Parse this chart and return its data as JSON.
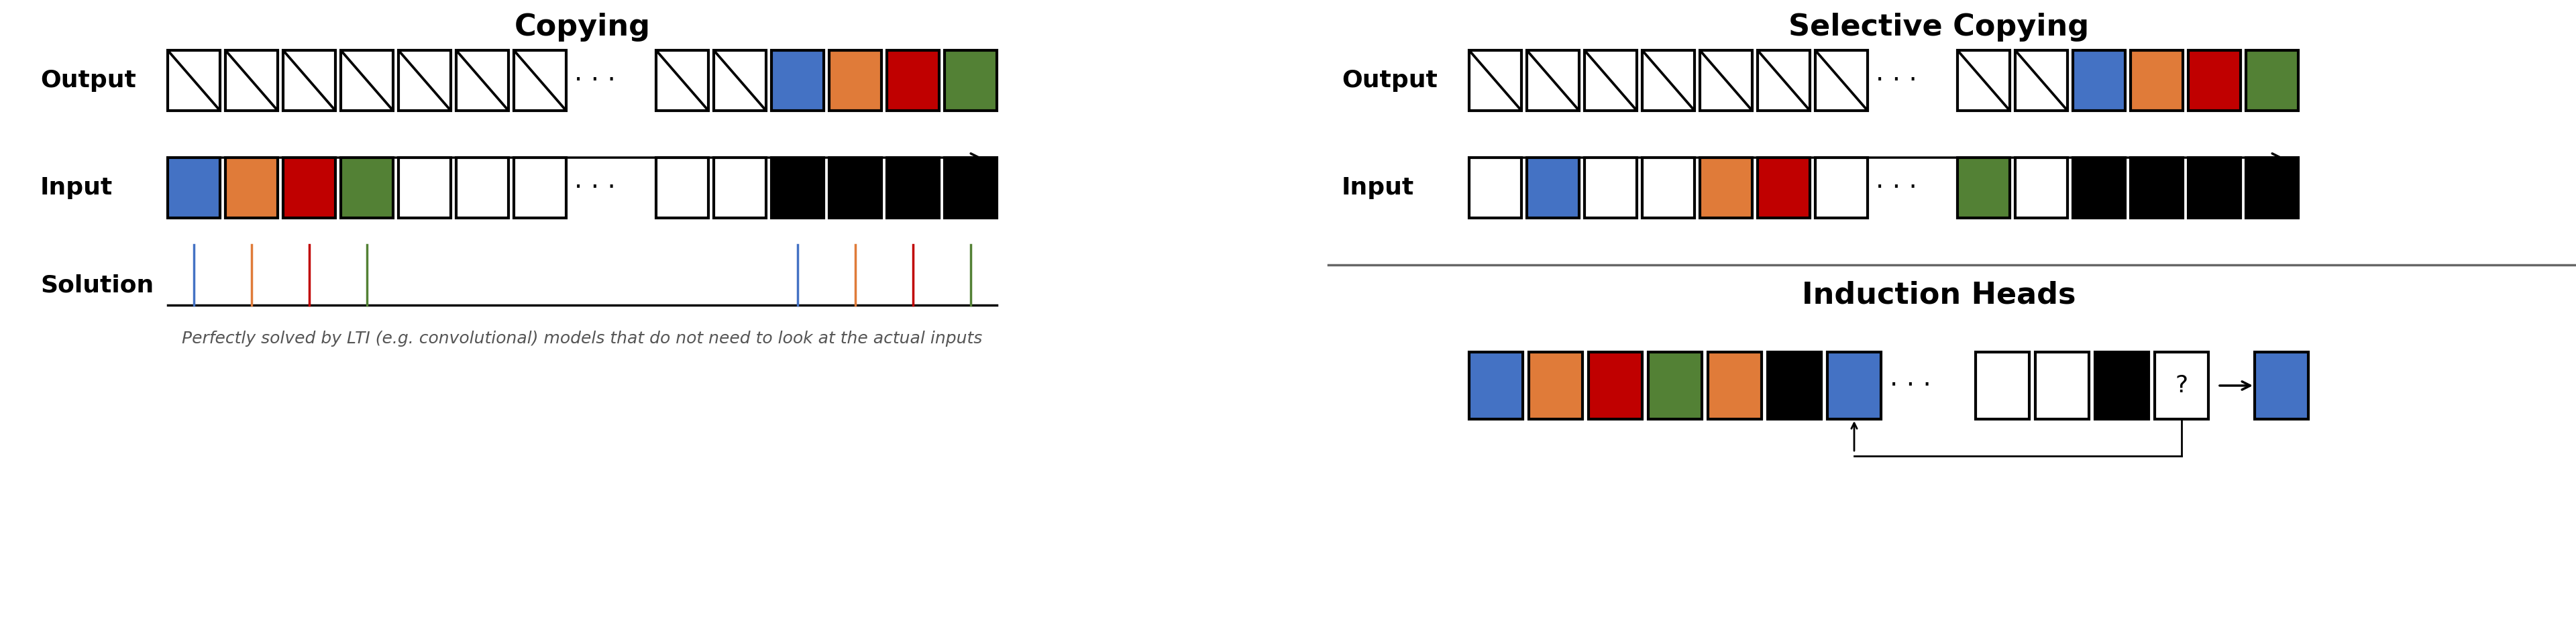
{
  "title_copying": "Copying",
  "title_selective": "Selective Copying",
  "title_induction": "Induction Heads",
  "colors": {
    "blue": "#4472C4",
    "orange": "#E07B39",
    "red": "#C00000",
    "green": "#538135",
    "black": "#000000",
    "white": "#FFFFFF",
    "bg": "#FFFFFF"
  },
  "caption": "Perfectly solved by LTI (e.g. convolutional) models that do not need to look at the actual inputs",
  "title_fontsize": 32,
  "label_fontsize": 26,
  "caption_fontsize": 18
}
